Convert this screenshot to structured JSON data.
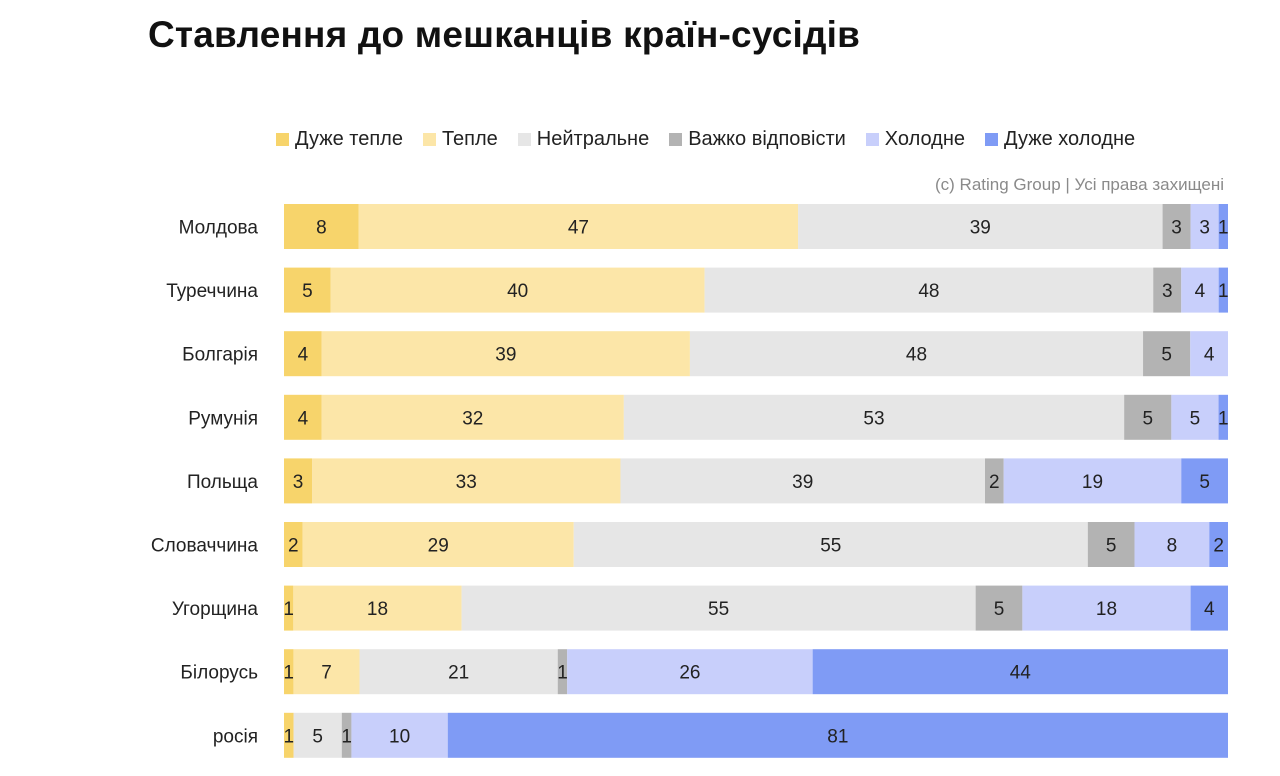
{
  "title": "Ставлення до мешканців країн-сусідів",
  "copyright": "(c) Rating Group | Усі права захищені",
  "chart_data": {
    "type": "bar",
    "orientation": "horizontal",
    "stacked": true,
    "legend_position": "top",
    "categories": [
      "Молдова",
      "Туреччина",
      "Болгарія",
      "Румунія",
      "Польща",
      "Словаччина",
      "Угорщина",
      "Білорусь",
      "росія"
    ],
    "series": [
      {
        "name": "Дуже тепле",
        "color": "#F7D46B",
        "values": [
          8,
          5,
          4,
          4,
          3,
          2,
          1,
          1,
          1
        ]
      },
      {
        "name": "Тепле",
        "color": "#FCE6A8",
        "values": [
          47,
          40,
          39,
          32,
          33,
          29,
          18,
          7,
          null
        ]
      },
      {
        "name": "Нейтральне",
        "color": "#E6E6E6",
        "values": [
          39,
          48,
          48,
          53,
          39,
          55,
          55,
          21,
          5
        ]
      },
      {
        "name": "Важко відповісти",
        "color": "#B3B3B3",
        "values": [
          3,
          3,
          5,
          5,
          2,
          5,
          5,
          1,
          1
        ]
      },
      {
        "name": "Холодне",
        "color": "#C8CFFB",
        "values": [
          3,
          4,
          4,
          5,
          19,
          8,
          18,
          26,
          10
        ]
      },
      {
        "name": "Дуже холодне",
        "color": "#7F9BF5",
        "values": [
          1,
          1,
          null,
          1,
          5,
          2,
          4,
          44,
          81
        ]
      }
    ]
  }
}
